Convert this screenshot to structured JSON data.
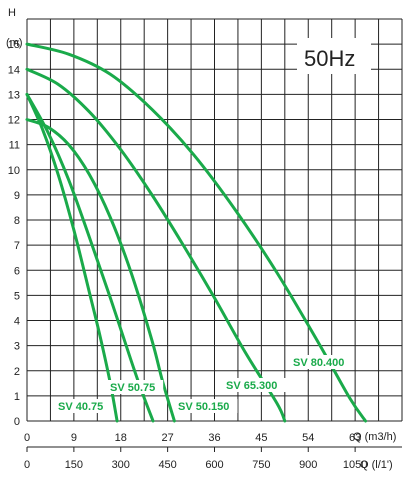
{
  "chart_data": {
    "type": "line",
    "badge": "50Hz",
    "ylabel_top": "H",
    "ylabel_unit": "(m)",
    "xlabel_primary": "Q (m3/h)",
    "xlabel_secondary": "Q (l/1')",
    "y_ticks": [
      "0",
      "1",
      "2",
      "3",
      "4",
      "5",
      "6",
      "7",
      "8",
      "9",
      "10",
      "11",
      "12",
      "13",
      "14",
      "15"
    ],
    "x_ticks_primary": [
      "0",
      "9",
      "18",
      "27",
      "36",
      "45",
      "54",
      "63"
    ],
    "x_ticks_secondary": [
      "0",
      "150",
      "300",
      "450",
      "600",
      "750",
      "900",
      "1050"
    ],
    "xlim": [
      0,
      72
    ],
    "ylim": [
      0,
      16
    ],
    "grid": true,
    "line_color": "#1aaa4a",
    "series": [
      {
        "name": "SV 40.75",
        "points": [
          [
            0,
            13.0
          ],
          [
            3,
            11.6
          ],
          [
            6,
            9.8
          ],
          [
            9,
            7.6
          ],
          [
            12,
            5.1
          ],
          [
            14,
            3.4
          ],
          [
            16,
            1.5
          ],
          [
            17.3,
            0
          ]
        ]
      },
      {
        "name": "SV 50.75",
        "points": [
          [
            0,
            13.0
          ],
          [
            4,
            11.5
          ],
          [
            8,
            9.6
          ],
          [
            12,
            7.3
          ],
          [
            16,
            4.9
          ],
          [
            20,
            2.4
          ],
          [
            22,
            1.2
          ],
          [
            24.2,
            0
          ]
        ]
      },
      {
        "name": "SV 50.150",
        "points": [
          [
            0,
            12.0
          ],
          [
            4,
            11.7
          ],
          [
            8,
            11.0
          ],
          [
            12,
            9.8
          ],
          [
            16,
            8.1
          ],
          [
            20,
            5.9
          ],
          [
            24,
            3.2
          ],
          [
            26,
            1.6
          ],
          [
            28.3,
            0
          ]
        ]
      },
      {
        "name": "SV 65.300",
        "points": [
          [
            0,
            14.0
          ],
          [
            6,
            13.4
          ],
          [
            12,
            12.3
          ],
          [
            18,
            10.8
          ],
          [
            24,
            9.0
          ],
          [
            30,
            7.0
          ],
          [
            36,
            4.9
          ],
          [
            42,
            2.7
          ],
          [
            48,
            0.7
          ],
          [
            49.5,
            0
          ]
        ]
      },
      {
        "name": "SV 80.400",
        "points": [
          [
            0,
            15.0
          ],
          [
            8,
            14.6
          ],
          [
            16,
            13.8
          ],
          [
            24,
            12.4
          ],
          [
            32,
            10.6
          ],
          [
            40,
            8.4
          ],
          [
            48,
            5.9
          ],
          [
            56,
            3.1
          ],
          [
            62,
            0.9
          ],
          [
            65,
            0
          ]
        ]
      }
    ]
  }
}
